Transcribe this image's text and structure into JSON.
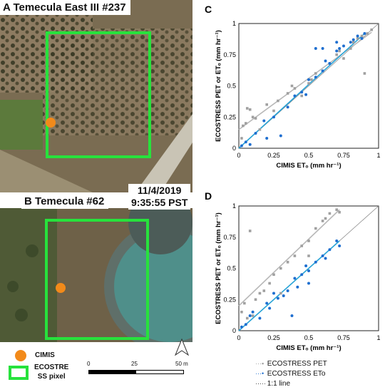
{
  "panels": {
    "A": {
      "letter": "A",
      "site": "Temecula East III #237"
    },
    "B": {
      "letter": "B",
      "site": "Temecula #62",
      "date": "11/4/2019",
      "time": "9:35:55 PST"
    }
  },
  "map_legend": {
    "cimis": "CIMIS",
    "ecostress_l1": "ECOSTRE",
    "ecostress_l2": "SS pixel"
  },
  "scale_bar": {
    "t0": "0",
    "t1": "25",
    "t2": "50 m"
  },
  "colors": {
    "pet": "#a0a0a0",
    "eto": "#1f6fd0",
    "pet_line": "#b8b8b8",
    "eto_line": "#27a3d6",
    "one_to_one": "#8a8a8a",
    "green_box": "#27e23c",
    "cimis": "#f28a1a"
  },
  "chart_legend": {
    "pet": "ECOSTRESS PET",
    "eto": "ECOSTRESS ETo",
    "line": "1:1 line"
  },
  "chart_data": [
    {
      "panel": "C",
      "type": "scatter",
      "xlabel": "CIMIS ETₒ (mm hr⁻¹)",
      "ylabel": "ECOSTRESS PET or ETₒ (mm hr⁻¹)",
      "xlim": [
        0,
        1
      ],
      "ylim": [
        0,
        1
      ],
      "xticks": [
        "0",
        "0.25",
        "0.5",
        "0.75",
        "1"
      ],
      "yticks": [
        "0",
        "0.25",
        "0.5",
        "0.75",
        "1"
      ],
      "series": [
        {
          "name": "ECOSTRESS PET",
          "marker": "square",
          "color": "#a0a0a0",
          "points": [
            [
              0.02,
              0.08
            ],
            [
              0.03,
              0.18
            ],
            [
              0.05,
              0.2
            ],
            [
              0.06,
              0.32
            ],
            [
              0.08,
              0.31
            ],
            [
              0.1,
              0.25
            ],
            [
              0.12,
              0.24
            ],
            [
              0.15,
              0.15
            ],
            [
              0.2,
              0.35
            ],
            [
              0.25,
              0.3
            ],
            [
              0.28,
              0.38
            ],
            [
              0.35,
              0.44
            ],
            [
              0.38,
              0.5
            ],
            [
              0.4,
              0.48
            ],
            [
              0.45,
              0.42
            ],
            [
              0.5,
              0.52
            ],
            [
              0.52,
              0.55
            ],
            [
              0.55,
              0.6
            ],
            [
              0.6,
              0.62
            ],
            [
              0.65,
              0.68
            ],
            [
              0.7,
              0.75
            ],
            [
              0.72,
              0.78
            ],
            [
              0.75,
              0.72
            ],
            [
              0.8,
              0.8
            ],
            [
              0.82,
              0.85
            ],
            [
              0.85,
              0.88
            ],
            [
              0.88,
              0.9
            ],
            [
              0.9,
              0.6
            ],
            [
              0.92,
              0.92
            ],
            [
              0.95,
              0.95
            ]
          ]
        },
        {
          "name": "ECOSTRESS ETo",
          "marker": "circle",
          "color": "#1f6fd0",
          "points": [
            [
              0.02,
              0.02
            ],
            [
              0.05,
              0.05
            ],
            [
              0.08,
              0.03
            ],
            [
              0.12,
              0.12
            ],
            [
              0.18,
              0.22
            ],
            [
              0.2,
              0.08
            ],
            [
              0.25,
              0.25
            ],
            [
              0.3,
              0.1
            ],
            [
              0.35,
              0.33
            ],
            [
              0.4,
              0.42
            ],
            [
              0.45,
              0.45
            ],
            [
              0.48,
              0.43
            ],
            [
              0.5,
              0.55
            ],
            [
              0.55,
              0.57
            ],
            [
              0.6,
              0.62
            ],
            [
              0.62,
              0.7
            ],
            [
              0.65,
              0.68
            ],
            [
              0.7,
              0.78
            ],
            [
              0.72,
              0.8
            ],
            [
              0.75,
              0.82
            ],
            [
              0.8,
              0.85
            ],
            [
              0.82,
              0.87
            ],
            [
              0.85,
              0.9
            ],
            [
              0.88,
              0.88
            ],
            [
              0.9,
              0.92
            ],
            [
              0.55,
              0.8
            ],
            [
              0.6,
              0.8
            ],
            [
              0.7,
              0.85
            ]
          ]
        }
      ],
      "fits": {
        "pet": [
          [
            0.0,
            0.15
          ],
          [
            0.95,
            0.93
          ]
        ],
        "eto": [
          [
            0.0,
            0.0
          ],
          [
            0.9,
            0.92
          ]
        ]
      }
    },
    {
      "panel": "D",
      "type": "scatter",
      "xlabel": "CIMIS ETₒ (mm hr⁻¹)",
      "ylabel": "ECOSTRESS PET or ETₒ (mm hr⁻¹)",
      "xlim": [
        0,
        1
      ],
      "ylim": [
        0,
        1
      ],
      "xticks": [
        "0",
        "0.25",
        "0.5",
        "0.75",
        "1"
      ],
      "yticks": [
        "0",
        "0.25",
        "0.5",
        "0.75",
        "1"
      ],
      "series": [
        {
          "name": "ECOSTRESS PET",
          "marker": "square",
          "color": "#a0a0a0",
          "points": [
            [
              0.02,
              0.15
            ],
            [
              0.04,
              0.22
            ],
            [
              0.06,
              0.1
            ],
            [
              0.08,
              0.8
            ],
            [
              0.1,
              0.12
            ],
            [
              0.12,
              0.25
            ],
            [
              0.15,
              0.3
            ],
            [
              0.18,
              0.32
            ],
            [
              0.22,
              0.38
            ],
            [
              0.25,
              0.45
            ],
            [
              0.3,
              0.5
            ],
            [
              0.35,
              0.55
            ],
            [
              0.4,
              0.6
            ],
            [
              0.45,
              0.68
            ],
            [
              0.5,
              0.72
            ],
            [
              0.55,
              0.82
            ],
            [
              0.6,
              0.88
            ],
            [
              0.62,
              0.9
            ],
            [
              0.65,
              0.94
            ],
            [
              0.7,
              0.97
            ],
            [
              0.72,
              0.95
            ],
            [
              0.5,
              0.6
            ],
            [
              0.3,
              0.3
            ]
          ]
        },
        {
          "name": "ECOSTRESS ETo",
          "marker": "circle",
          "color": "#1f6fd0",
          "points": [
            [
              0.02,
              0.03
            ],
            [
              0.05,
              0.05
            ],
            [
              0.08,
              0.12
            ],
            [
              0.1,
              0.15
            ],
            [
              0.15,
              0.1
            ],
            [
              0.2,
              0.22
            ],
            [
              0.22,
              0.18
            ],
            [
              0.25,
              0.3
            ],
            [
              0.28,
              0.26
            ],
            [
              0.32,
              0.28
            ],
            [
              0.35,
              0.32
            ],
            [
              0.38,
              0.12
            ],
            [
              0.4,
              0.42
            ],
            [
              0.45,
              0.45
            ],
            [
              0.48,
              0.52
            ],
            [
              0.5,
              0.48
            ],
            [
              0.55,
              0.55
            ],
            [
              0.6,
              0.6
            ],
            [
              0.62,
              0.58
            ],
            [
              0.65,
              0.65
            ],
            [
              0.7,
              0.72
            ],
            [
              0.72,
              0.68
            ],
            [
              0.5,
              0.38
            ],
            [
              0.42,
              0.35
            ]
          ]
        }
      ],
      "fits": {
        "pet": [
          [
            0.0,
            0.2
          ],
          [
            0.72,
            0.97
          ]
        ],
        "eto": [
          [
            0.0,
            0.0
          ],
          [
            0.72,
            0.72
          ]
        ]
      }
    }
  ]
}
